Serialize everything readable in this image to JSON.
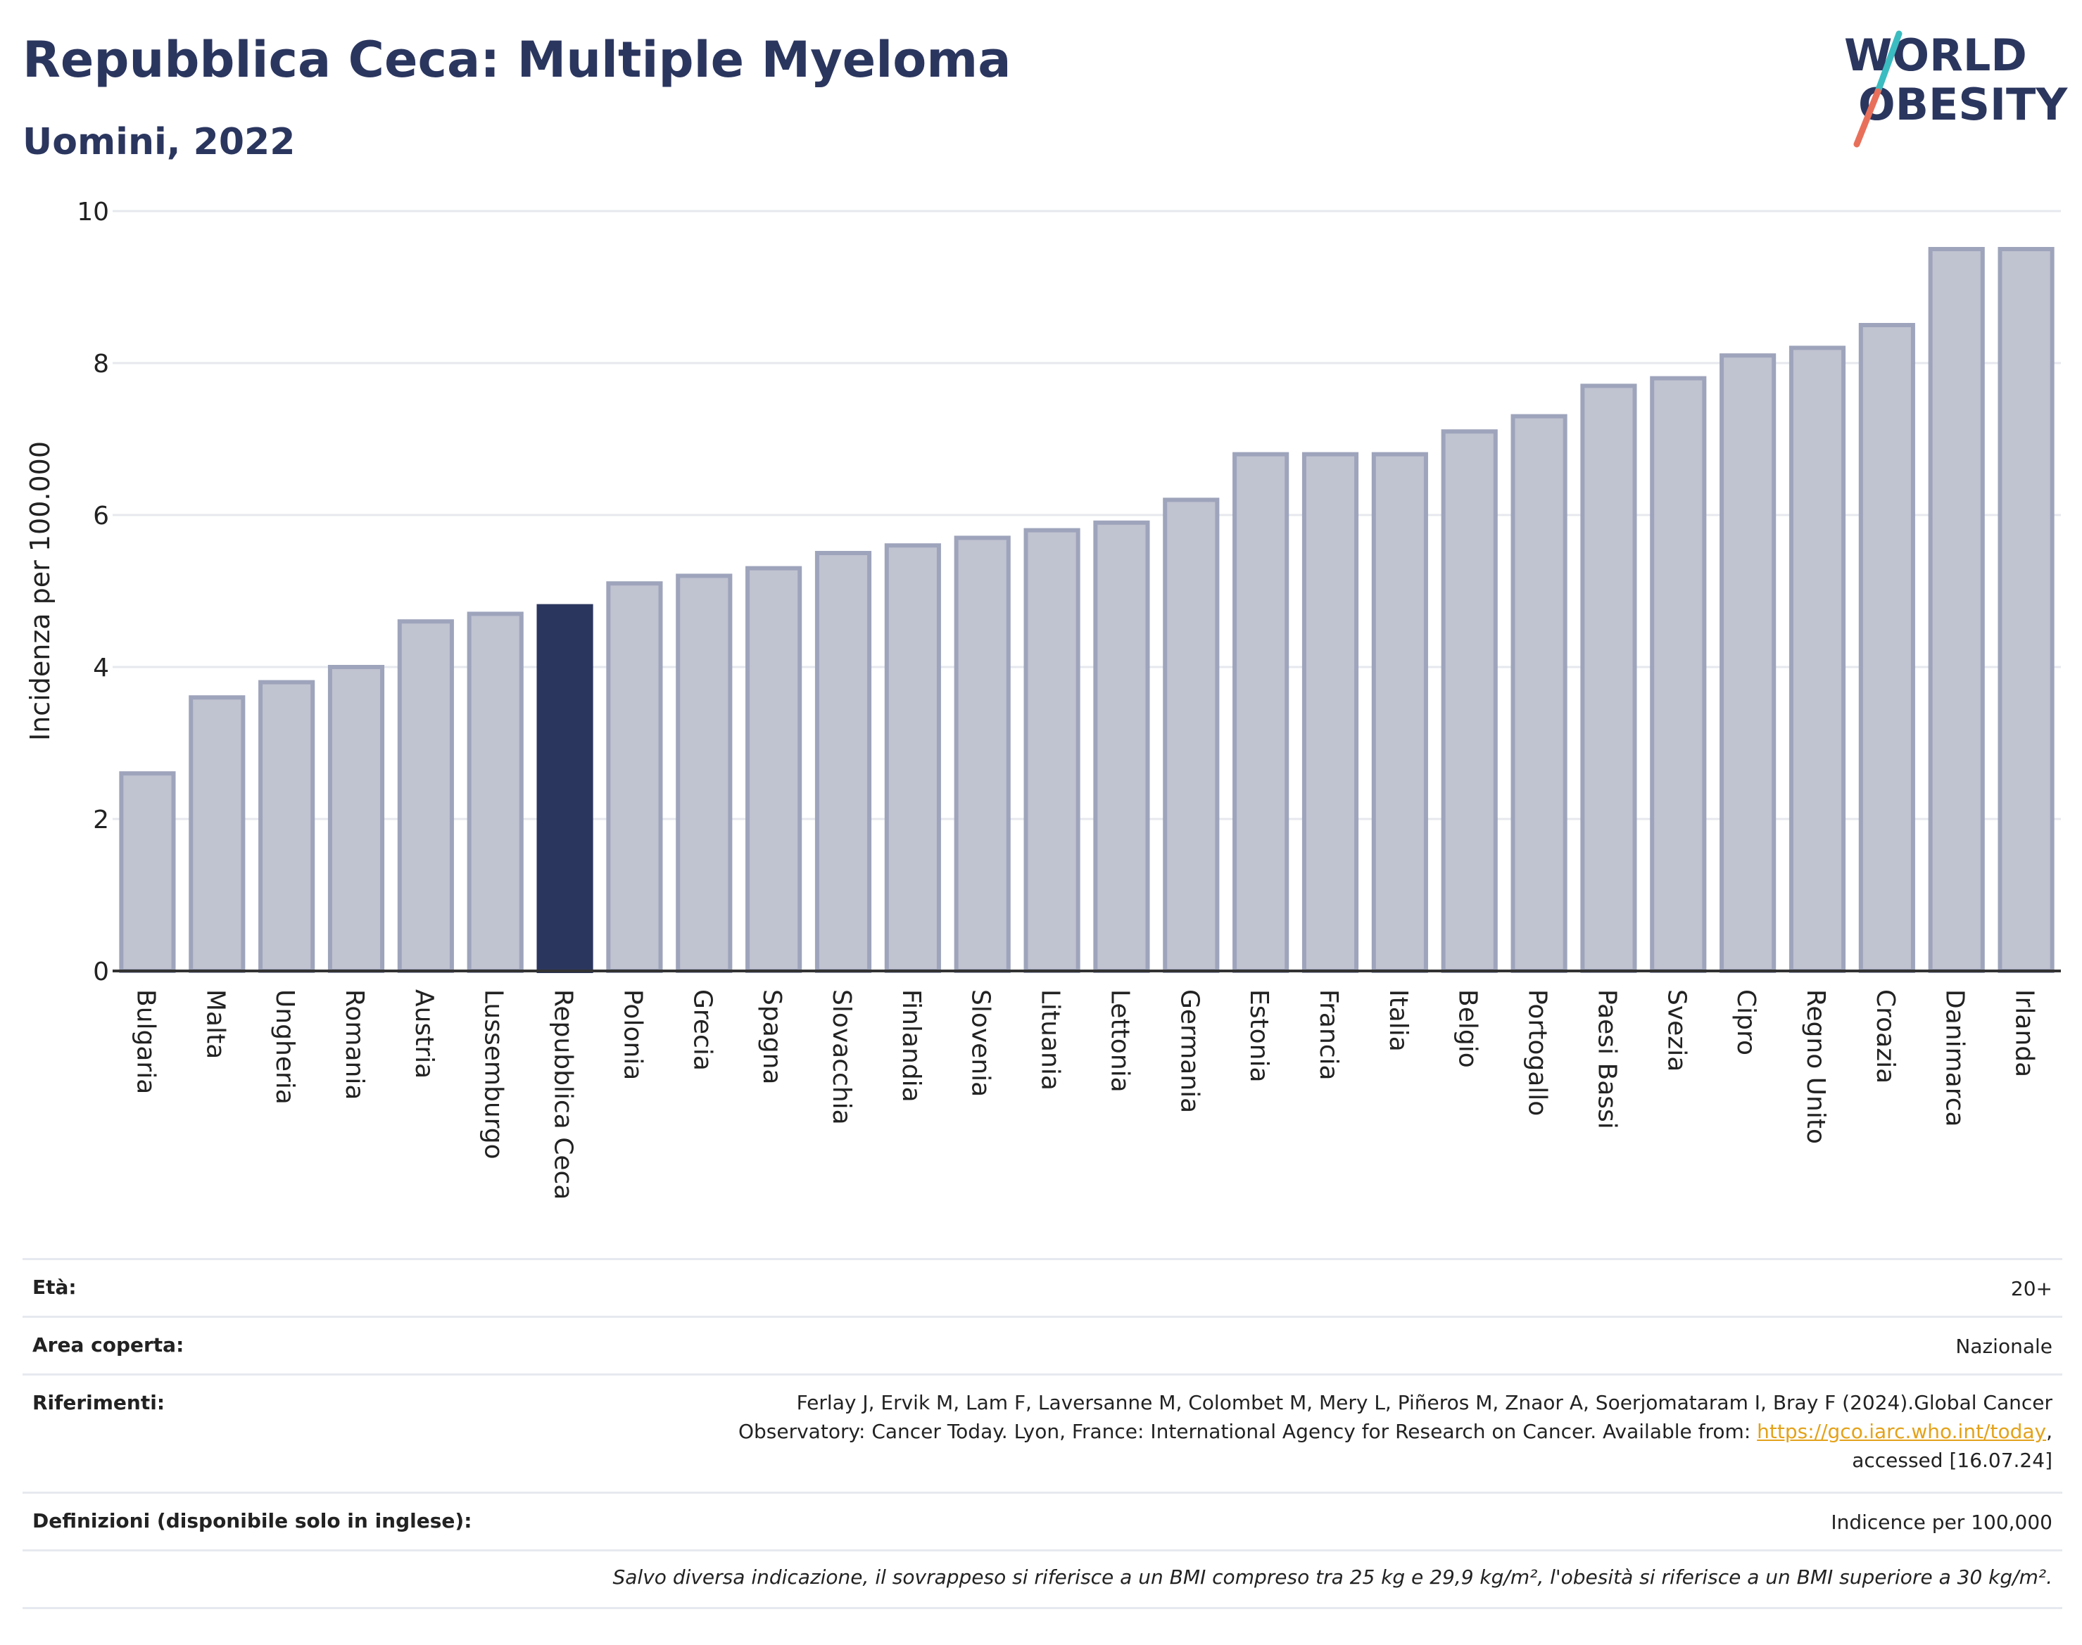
{
  "header": {
    "title": "Repubblica Ceca: Multiple Myeloma",
    "subtitle": "Uomini, 2022"
  },
  "logo": {
    "line1": "WORLD",
    "line2": "OBESITY",
    "colors": {
      "text": "#2b365f",
      "slash_top": "#3bbcc0",
      "slash_bottom": "#e8705b"
    }
  },
  "chart_data": {
    "type": "bar",
    "ylabel": "Incidenza per 100.000",
    "ylim": [
      0,
      10
    ],
    "yticks": [
      0,
      2,
      4,
      6,
      8,
      10
    ],
    "grid": true,
    "highlight": "Repubblica Ceca",
    "colors": {
      "bar": "#c0c3d0",
      "bar_edge": "#9ea4bb",
      "highlight": "#2b365f",
      "grid": "#e6e8ee",
      "axis": "#333333"
    },
    "categories": [
      "Bulgaria",
      "Malta",
      "Ungheria",
      "Romania",
      "Austria",
      "Lussemburgo",
      "Repubblica Ceca",
      "Polonia",
      "Grecia",
      "Spagna",
      "Slovacchia",
      "Finlandia",
      "Slovenia",
      "Lituania",
      "Lettonia",
      "Germania",
      "Estonia",
      "Francia",
      "Italia",
      "Belgio",
      "Portogallo",
      "Paesi Bassi",
      "Svezia",
      "Cipro",
      "Regno Unito",
      "Croazia",
      "Danimarca",
      "Irlanda"
    ],
    "values": [
      2.6,
      3.6,
      3.8,
      4.0,
      4.6,
      4.7,
      4.8,
      5.1,
      5.2,
      5.3,
      5.5,
      5.6,
      5.7,
      5.8,
      5.9,
      6.2,
      6.8,
      6.8,
      6.8,
      7.1,
      7.3,
      7.7,
      7.8,
      8.1,
      8.2,
      8.5,
      9.5,
      9.5
    ]
  },
  "info": {
    "age_label": "Età:",
    "age_value": "20+",
    "area_label": "Area coperta:",
    "area_value": "Nazionale",
    "refs_label": "Riferimenti:",
    "refs_line1": "Ferlay J, Ervik M, Lam F, Laversanne M, Colombet M, Mery L, Piñeros M, Znaor A, Soerjomataram I, Bray F (2024).Global Cancer",
    "refs_line2_pre": "Observatory: Cancer Today. Lyon, France: International Agency for Research on Cancer. Available from: ",
    "refs_link": "https://gco.iarc.who.int/today",
    "refs_line2_post": ",",
    "refs_line3": "accessed [16.07.24]",
    "defs_label": "Definizioni (disponibile solo in inglese):",
    "defs_value": "Indicence per 100,000",
    "note": "Salvo diversa indicazione, il sovrappeso si riferisce a un BMI compreso tra 25 kg e 29,9 kg/m², l'obesità si riferisce a un BMI superiore a 30 kg/m²."
  }
}
